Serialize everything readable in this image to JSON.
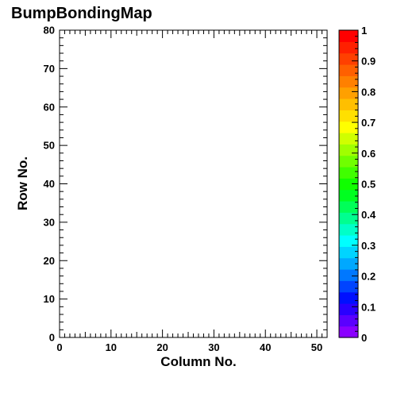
{
  "chart_data": {
    "type": "heatmap",
    "title": "BumpBondingMap",
    "xlabel": "Column No.",
    "ylabel": "Row No.",
    "xlim": [
      0,
      52
    ],
    "ylim": [
      0,
      80
    ],
    "x_ticks": [
      "0",
      "10",
      "20",
      "30",
      "40",
      "50"
    ],
    "y_ticks": [
      "0",
      "10",
      "20",
      "30",
      "40",
      "50",
      "60",
      "70",
      "80"
    ],
    "z_range": [
      0,
      1
    ],
    "colorbar_ticks": [
      "0",
      "0.1",
      "0.2",
      "0.3",
      "0.4",
      "0.5",
      "0.6",
      "0.7",
      "0.8",
      "0.9",
      "1"
    ],
    "colorbar_colors": [
      "#8a00ff",
      "#5a00ff",
      "#2a00ff",
      "#0010ff",
      "#0044ff",
      "#0078ff",
      "#00a8ff",
      "#00d4ff",
      "#00ffff",
      "#00ffc8",
      "#00ff90",
      "#00ff58",
      "#00ff20",
      "#10ff00",
      "#40ff00",
      "#70ff00",
      "#a0ff00",
      "#d0ff00",
      "#ffff00",
      "#ffe000",
      "#ffbf00",
      "#ffa000",
      "#ff8000",
      "#ff6000",
      "#ff4000",
      "#ff2000",
      "#ff0000"
    ],
    "grid": false,
    "cells": []
  }
}
